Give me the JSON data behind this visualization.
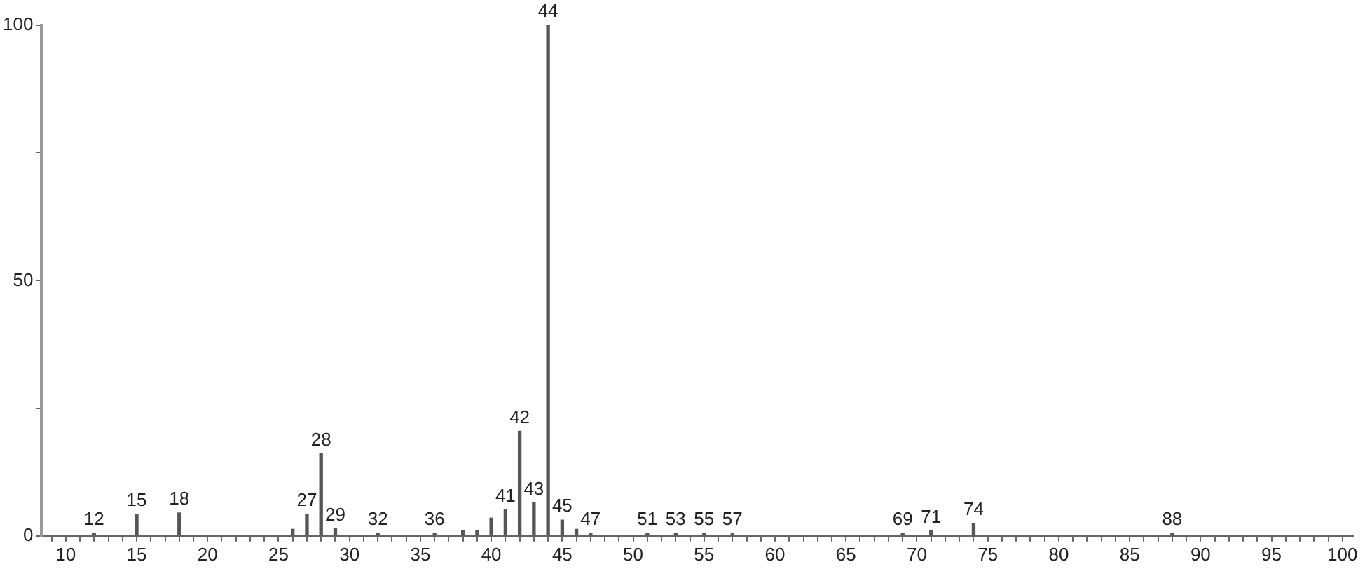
{
  "chart_data": {
    "type": "bar",
    "x": [
      12,
      15,
      18,
      26,
      27,
      28,
      29,
      32,
      36,
      38,
      39,
      40,
      41,
      42,
      43,
      44,
      45,
      46,
      47,
      51,
      53,
      55,
      57,
      69,
      71,
      74,
      88
    ],
    "values": [
      0.5,
      4.2,
      4.5,
      1.3,
      4.2,
      16.1,
      1.4,
      0.5,
      0.5,
      1,
      1,
      3.5,
      5.1,
      20.5,
      6.5,
      100,
      3.1,
      1.3,
      0.5,
      0.5,
      0.5,
      0.5,
      0.5,
      0.5,
      1,
      2.4,
      0.5
    ],
    "annotations": [
      {
        "text": "12",
        "x": 12,
        "y": 0.5
      },
      {
        "text": "15",
        "x": 15,
        "y": 4.2
      },
      {
        "text": "18",
        "x": 18,
        "y": 4.5
      },
      {
        "text": "27",
        "x": 27,
        "y": 4.2
      },
      {
        "text": "28",
        "x": 28,
        "y": 16.1
      },
      {
        "text": "29",
        "x": 29,
        "y": 1.4
      },
      {
        "text": "32",
        "x": 32,
        "y": 0.5
      },
      {
        "text": "36",
        "x": 36,
        "y": 0.5
      },
      {
        "text": "41",
        "x": 41,
        "y": 5.1
      },
      {
        "text": "42",
        "x": 42,
        "y": 20.5
      },
      {
        "text": "43",
        "x": 43,
        "y": 6.5
      },
      {
        "text": "44",
        "x": 44,
        "y": 100
      },
      {
        "text": "45",
        "x": 45,
        "y": 3.1
      },
      {
        "text": "47",
        "x": 47,
        "y": 0.5
      },
      {
        "text": "51",
        "x": 51,
        "y": 0.5
      },
      {
        "text": "53",
        "x": 53,
        "y": 0.5
      },
      {
        "text": "55",
        "x": 55,
        "y": 0.5
      },
      {
        "text": "57",
        "x": 57,
        "y": 0.5
      },
      {
        "text": "69",
        "x": 69,
        "y": 0.5
      },
      {
        "text": "71",
        "x": 71,
        "y": 1
      },
      {
        "text": "74",
        "x": 74,
        "y": 2.4
      },
      {
        "text": "88",
        "x": 88,
        "y": 0.5
      }
    ],
    "color": "#555555",
    "xlim": [
      8.3,
      100.8
    ],
    "xticks": [
      {
        "value": 9,
        "label": null
      },
      10,
      {
        "value": 11,
        "label": null
      },
      {
        "value": 12,
        "label": null
      },
      {
        "value": 13,
        "label": null
      },
      {
        "value": 14,
        "label": null
      },
      15,
      {
        "value": 16,
        "label": null
      },
      {
        "value": 17,
        "label": null
      },
      {
        "value": 18,
        "label": null
      },
      {
        "value": 19,
        "label": null
      },
      20,
      {
        "value": 21,
        "label": null
      },
      {
        "value": 22,
        "label": null
      },
      {
        "value": 23,
        "label": null
      },
      {
        "value": 24,
        "label": null
      },
      25,
      {
        "value": 26,
        "label": null
      },
      {
        "value": 27,
        "label": null
      },
      {
        "value": 28,
        "label": null
      },
      {
        "value": 29,
        "label": null
      },
      30,
      {
        "value": 31,
        "label": null
      },
      {
        "value": 32,
        "label": null
      },
      {
        "value": 33,
        "label": null
      },
      {
        "value": 34,
        "label": null
      },
      35,
      {
        "value": 36,
        "label": null
      },
      {
        "value": 37,
        "label": null
      },
      {
        "value": 38,
        "label": null
      },
      {
        "value": 39,
        "label": null
      },
      40,
      {
        "value": 41,
        "label": null
      },
      {
        "value": 42,
        "label": null
      },
      {
        "value": 43,
        "label": null
      },
      {
        "value": 44,
        "label": null
      },
      45,
      {
        "value": 46,
        "label": null
      },
      {
        "value": 47,
        "label": null
      },
      {
        "value": 48,
        "label": null
      },
      {
        "value": 49,
        "label": null
      },
      50,
      {
        "value": 51,
        "label": null
      },
      {
        "value": 52,
        "label": null
      },
      {
        "value": 53,
        "label": null
      },
      {
        "value": 54,
        "label": null
      },
      55,
      {
        "value": 56,
        "label": null
      },
      {
        "value": 57,
        "label": null
      },
      {
        "value": 58,
        "label": null
      },
      {
        "value": 59,
        "label": null
      },
      60,
      {
        "value": 61,
        "label": null
      },
      {
        "value": 62,
        "label": null
      },
      {
        "value": 63,
        "label": null
      },
      {
        "value": 64,
        "label": null
      },
      65,
      {
        "value": 66,
        "label": null
      },
      {
        "value": 67,
        "label": null
      },
      {
        "value": 68,
        "label": null
      },
      {
        "value": 69,
        "label": null
      },
      70,
      {
        "value": 71,
        "label": null
      },
      {
        "value": 72,
        "label": null
      },
      {
        "value": 73,
        "label": null
      },
      {
        "value": 74,
        "label": null
      },
      75,
      {
        "value": 76,
        "label": null
      },
      {
        "value": 77,
        "label": null
      },
      {
        "value": 78,
        "label": null
      },
      {
        "value": 79,
        "label": null
      },
      80,
      {
        "value": 81,
        "label": null
      },
      {
        "value": 82,
        "label": null
      },
      {
        "value": 83,
        "label": null
      },
      {
        "value": 84,
        "label": null
      },
      85,
      {
        "value": 86,
        "label": null
      },
      {
        "value": 87,
        "label": null
      },
      {
        "value": 88,
        "label": null
      },
      {
        "value": 89,
        "label": null
      },
      90,
      {
        "value": 91,
        "label": null
      },
      {
        "value": 92,
        "label": null
      },
      {
        "value": 93,
        "label": null
      },
      {
        "value": 94,
        "label": null
      },
      95,
      {
        "value": 96,
        "label": null
      },
      {
        "value": 97,
        "label": null
      },
      {
        "value": 98,
        "label": null
      },
      {
        "value": 99,
        "label": null
      },
      100
    ],
    "ylim": [
      0,
      100
    ],
    "yticks": [
      0,
      {
        "value": 25,
        "label": null
      },
      50,
      {
        "value": 75,
        "label": null
      },
      100
    ],
    "grid": false,
    "legend": false
  }
}
